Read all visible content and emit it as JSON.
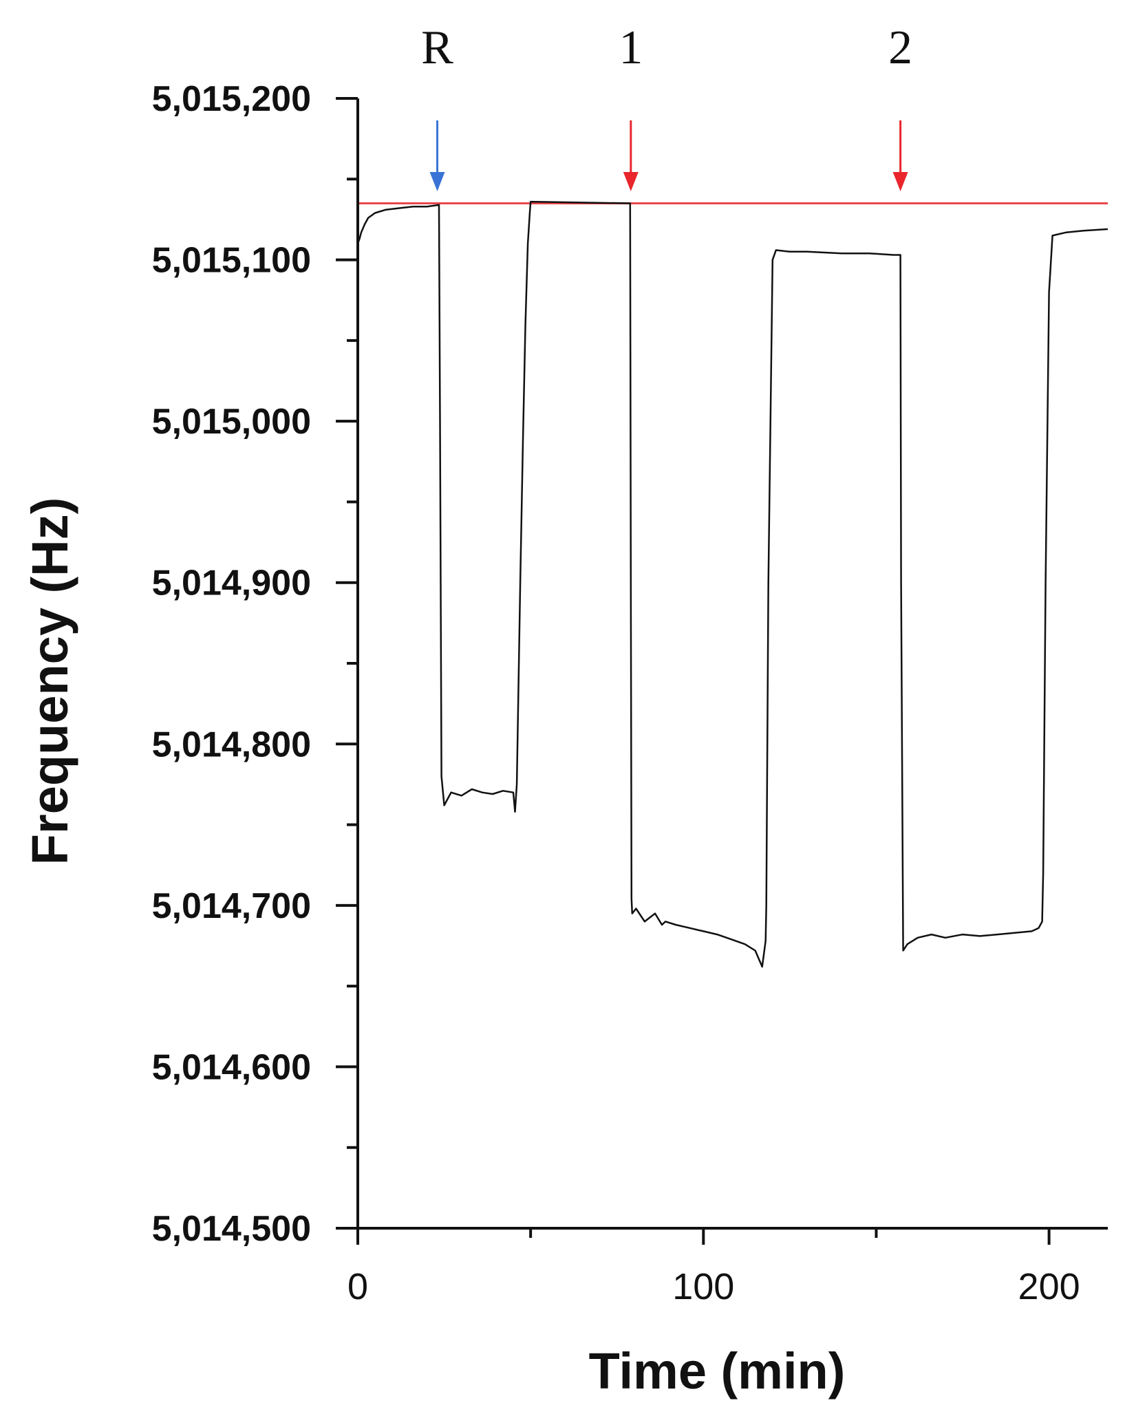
{
  "chart_data": {
    "type": "line",
    "xlabel": "Time (min)",
    "ylabel": "Frequency (Hz)",
    "xlim": [
      0,
      217
    ],
    "ylim": [
      5014500,
      5015200
    ],
    "x_ticks": [
      0,
      100,
      200
    ],
    "x_tick_labels": [
      "0",
      "100",
      "200"
    ],
    "x_minor_ticks": [
      50,
      150
    ],
    "y_ticks": [
      5014500,
      5014600,
      5014700,
      5014800,
      5014900,
      5015000,
      5015100,
      5015200
    ],
    "y_tick_labels": [
      "5,014,500",
      "5,014,600",
      "5,014,700",
      "5,014,800",
      "5,014,900",
      "5,015,000",
      "5,015,100",
      "5,015,200"
    ],
    "y_minor_ticks": [
      5014550,
      5014650,
      5014750,
      5014850,
      5014950,
      5015050,
      5015150
    ],
    "grid": false,
    "reference_line": {
      "y": 5015135,
      "color": "#e8474c"
    },
    "markers": [
      {
        "label": "R",
        "x": 23,
        "color": "#3a73d6"
      },
      {
        "label": "1",
        "x": 79,
        "color": "#e8262c"
      },
      {
        "label": "2",
        "x": 157,
        "color": "#e8262c"
      }
    ],
    "series": [
      {
        "color": "#111111",
        "x": [
          0,
          0.5,
          1,
          2,
          3,
          5,
          8,
          12,
          16,
          20,
          23.5,
          23.8,
          24.2,
          25,
          27,
          30,
          33,
          36,
          39,
          42,
          45,
          45.5,
          46,
          47,
          47.8,
          48.5,
          49.2,
          49.8,
          50,
          78.8,
          79.0,
          79.2,
          79.4,
          80.5,
          83,
          86,
          88,
          89,
          92,
          96,
          100,
          104,
          108,
          112,
          115,
          117,
          118,
          118.2,
          118.8,
          120,
          121,
          125,
          130,
          140,
          148,
          155,
          157,
          157.2,
          157.8,
          159,
          162,
          166,
          170,
          175,
          180,
          185,
          190,
          195,
          197,
          198,
          198.3,
          199,
          200,
          201,
          205,
          210,
          217
        ],
        "y": [
          5015110,
          5015113,
          5015117,
          5015122,
          5015126,
          5015129,
          5015131,
          5015132,
          5015133,
          5015133,
          5015134,
          5015000,
          5014780,
          5014762,
          5014770,
          5014768,
          5014772,
          5014770,
          5014769,
          5014771,
          5014770,
          5014758,
          5014775,
          5014900,
          5014990,
          5015060,
          5015110,
          5015130,
          5015136,
          5015135,
          5014900,
          5014704,
          5014695,
          5014698,
          5014690,
          5014695,
          5014688,
          5014690,
          5014688,
          5014686,
          5014684,
          5014682,
          5014679,
          5014676,
          5014672,
          5014662,
          5014678,
          5014700,
          5014900,
          5015100,
          5015106,
          5015105,
          5015105,
          5015104,
          5015104,
          5015103,
          5015103,
          5014900,
          5014672,
          5014676,
          5014680,
          5014682,
          5014680,
          5014682,
          5014681,
          5014682,
          5014683,
          5014684,
          5014686,
          5014690,
          5014720,
          5014900,
          5015080,
          5015115,
          5015117,
          5015118,
          5015119
        ]
      }
    ]
  }
}
